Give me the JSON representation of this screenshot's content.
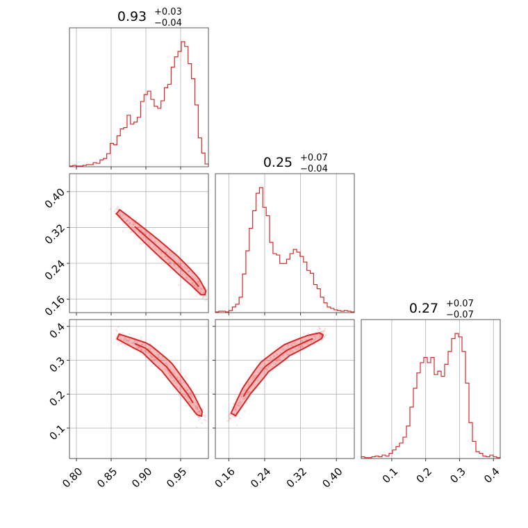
{
  "chart_data": {
    "type": "corner",
    "color": "#d62728",
    "parameters": [
      {
        "title_value": "0.93",
        "title_plus": "+0.03",
        "title_minus": "−0.04",
        "range": [
          0.79,
          0.99
        ],
        "ticks": [
          0.8,
          0.85,
          0.9,
          0.95
        ],
        "tick_labels": [
          "0.80",
          "0.85",
          "0.90",
          "0.95"
        ],
        "hist": [
          1,
          2,
          1,
          1,
          2,
          3,
          3,
          6,
          5,
          10,
          12,
          19,
          34,
          32,
          45,
          55,
          57,
          75,
          62,
          65,
          72,
          95,
          105,
          110,
          98,
          88,
          85,
          96,
          115,
          120,
          145,
          160,
          168,
          182,
          175,
          150,
          128,
          90,
          42,
          20,
          4
        ]
      },
      {
        "title_value": "0.25",
        "title_plus": "+0.07",
        "title_minus": "−0.04",
        "range": [
          0.13,
          0.44
        ],
        "ticks": [
          0.16,
          0.24,
          0.32,
          0.4
        ],
        "tick_labels": [
          "0.16",
          "0.24",
          "0.32",
          "0.40"
        ],
        "hist": [
          1,
          2,
          2,
          1,
          3,
          8,
          12,
          22,
          55,
          88,
          120,
          145,
          170,
          178,
          150,
          138,
          100,
          84,
          82,
          70,
          70,
          76,
          84,
          90,
          86,
          80,
          72,
          60,
          56,
          40,
          34,
          22,
          14,
          8,
          6,
          4,
          3,
          2,
          3,
          2,
          1
        ]
      },
      {
        "title_value": "0.27",
        "title_plus": "+0.07",
        "title_minus": "−0.07",
        "range": [
          0.01,
          0.42
        ],
        "ticks": [
          0.1,
          0.2,
          0.3,
          0.4
        ],
        "tick_labels": [
          "0.1",
          "0.2",
          "0.3",
          "0.4"
        ],
        "hist": [
          2,
          1,
          1,
          2,
          3,
          2,
          4,
          3,
          6,
          10,
          14,
          18,
          25,
          38,
          60,
          82,
          100,
          112,
          118,
          112,
          118,
          98,
          102,
          96,
          110,
          125,
          140,
          146,
          142,
          125,
          88,
          42,
          20,
          8,
          6,
          3,
          2,
          4,
          2,
          1
        ]
      }
    ],
    "pair_ridges": {
      "1_0": {
        "x": [
          0.86,
          0.9,
          0.94,
          0.97,
          0.985
        ],
        "y": [
          0.355,
          0.3,
          0.245,
          0.2,
          0.17
        ]
      },
      "2_0": {
        "x": [
          0.86,
          0.9,
          0.93,
          0.96,
          0.98
        ],
        "y": [
          0.37,
          0.335,
          0.28,
          0.2,
          0.135
        ]
      },
      "2_1": {
        "x": [
          0.17,
          0.2,
          0.24,
          0.29,
          0.34,
          0.37
        ],
        "y": [
          0.14,
          0.21,
          0.28,
          0.33,
          0.36,
          0.375
        ]
      }
    },
    "xlabel": "",
    "ylabel": ""
  }
}
